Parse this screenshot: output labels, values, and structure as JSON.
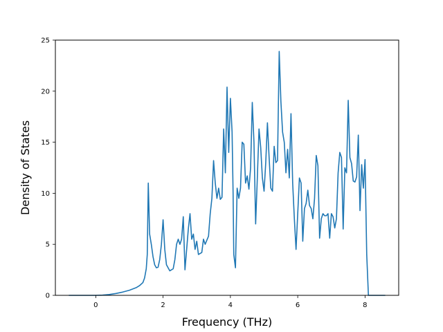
{
  "chart_data": {
    "type": "line",
    "title": "",
    "xlabel": "Frequency (THz)",
    "ylabel": "Density of States",
    "xlim": [
      -1.2,
      9.0
    ],
    "ylim": [
      0,
      25
    ],
    "x_ticks": [
      0,
      2,
      4,
      6,
      8
    ],
    "y_ticks": [
      0,
      5,
      10,
      15,
      20,
      25
    ],
    "grid": false,
    "legend": "none",
    "series": [
      {
        "color": "#1f77b4",
        "points": [
          [
            -0.8,
            0
          ],
          [
            -0.4,
            0
          ],
          [
            0.0,
            0
          ],
          [
            0.2,
            0.02
          ],
          [
            0.4,
            0.08
          ],
          [
            0.6,
            0.18
          ],
          [
            0.8,
            0.32
          ],
          [
            1.0,
            0.5
          ],
          [
            1.2,
            0.75
          ],
          [
            1.3,
            0.95
          ],
          [
            1.4,
            1.25
          ],
          [
            1.45,
            1.7
          ],
          [
            1.5,
            2.6
          ],
          [
            1.53,
            4.0
          ],
          [
            1.56,
            11.0
          ],
          [
            1.6,
            6.0
          ],
          [
            1.65,
            5.0
          ],
          [
            1.7,
            3.8
          ],
          [
            1.75,
            3.0
          ],
          [
            1.8,
            2.7
          ],
          [
            1.85,
            2.75
          ],
          [
            1.9,
            3.5
          ],
          [
            1.95,
            5.0
          ],
          [
            2.0,
            7.4
          ],
          [
            2.05,
            4.5
          ],
          [
            2.1,
            3.0
          ],
          [
            2.2,
            2.4
          ],
          [
            2.3,
            2.6
          ],
          [
            2.35,
            3.5
          ],
          [
            2.4,
            5.0
          ],
          [
            2.45,
            5.5
          ],
          [
            2.5,
            5.0
          ],
          [
            2.55,
            5.5
          ],
          [
            2.6,
            7.7
          ],
          [
            2.65,
            2.5
          ],
          [
            2.7,
            4.5
          ],
          [
            2.75,
            6.5
          ],
          [
            2.8,
            8.0
          ],
          [
            2.85,
            5.5
          ],
          [
            2.9,
            6.0
          ],
          [
            2.95,
            4.5
          ],
          [
            3.0,
            5.3
          ],
          [
            3.05,
            4.0
          ],
          [
            3.15,
            4.2
          ],
          [
            3.2,
            5.5
          ],
          [
            3.25,
            5.0
          ],
          [
            3.35,
            5.8
          ],
          [
            3.4,
            8.0
          ],
          [
            3.45,
            9.5
          ],
          [
            3.5,
            13.2
          ],
          [
            3.55,
            11.0
          ],
          [
            3.6,
            9.5
          ],
          [
            3.65,
            10.5
          ],
          [
            3.7,
            9.4
          ],
          [
            3.75,
            9.6
          ],
          [
            3.8,
            16.3
          ],
          [
            3.85,
            12.0
          ],
          [
            3.9,
            20.4
          ],
          [
            3.95,
            14.0
          ],
          [
            4.0,
            19.3
          ],
          [
            4.05,
            16.0
          ],
          [
            4.08,
            10.0
          ],
          [
            4.1,
            4.0
          ],
          [
            4.15,
            2.7
          ],
          [
            4.2,
            10.5
          ],
          [
            4.25,
            9.5
          ],
          [
            4.3,
            10.5
          ],
          [
            4.35,
            15.0
          ],
          [
            4.4,
            14.8
          ],
          [
            4.45,
            11.0
          ],
          [
            4.5,
            11.7
          ],
          [
            4.55,
            10.4
          ],
          [
            4.6,
            12.5
          ],
          [
            4.65,
            18.9
          ],
          [
            4.7,
            15.0
          ],
          [
            4.75,
            7.0
          ],
          [
            4.8,
            11.5
          ],
          [
            4.85,
            16.3
          ],
          [
            4.9,
            14.5
          ],
          [
            4.95,
            11.5
          ],
          [
            5.0,
            10.2
          ],
          [
            5.05,
            13.0
          ],
          [
            5.1,
            16.9
          ],
          [
            5.15,
            13.5
          ],
          [
            5.2,
            10.5
          ],
          [
            5.25,
            10.2
          ],
          [
            5.3,
            14.6
          ],
          [
            5.35,
            13.0
          ],
          [
            5.4,
            13.2
          ],
          [
            5.45,
            23.9
          ],
          [
            5.5,
            19.0
          ],
          [
            5.55,
            16.0
          ],
          [
            5.6,
            15.0
          ],
          [
            5.65,
            12.0
          ],
          [
            5.7,
            14.3
          ],
          [
            5.75,
            11.5
          ],
          [
            5.8,
            17.8
          ],
          [
            5.85,
            11.0
          ],
          [
            5.9,
            7.5
          ],
          [
            5.95,
            4.5
          ],
          [
            6.0,
            8.0
          ],
          [
            6.05,
            11.5
          ],
          [
            6.1,
            11.0
          ],
          [
            6.15,
            5.3
          ],
          [
            6.2,
            8.5
          ],
          [
            6.25,
            9.0
          ],
          [
            6.3,
            10.3
          ],
          [
            6.35,
            8.8
          ],
          [
            6.4,
            8.5
          ],
          [
            6.45,
            7.5
          ],
          [
            6.5,
            9.5
          ],
          [
            6.55,
            13.7
          ],
          [
            6.6,
            12.7
          ],
          [
            6.65,
            5.6
          ],
          [
            6.7,
            7.5
          ],
          [
            6.75,
            8.0
          ],
          [
            6.8,
            7.8
          ],
          [
            6.85,
            7.8
          ],
          [
            6.9,
            8.0
          ],
          [
            6.95,
            5.6
          ],
          [
            7.0,
            8.0
          ],
          [
            7.05,
            7.7
          ],
          [
            7.1,
            6.6
          ],
          [
            7.15,
            7.5
          ],
          [
            7.2,
            12.0
          ],
          [
            7.25,
            14.0
          ],
          [
            7.3,
            13.5
          ],
          [
            7.35,
            6.5
          ],
          [
            7.4,
            12.5
          ],
          [
            7.45,
            12.0
          ],
          [
            7.5,
            19.1
          ],
          [
            7.55,
            13.5
          ],
          [
            7.6,
            12.9
          ],
          [
            7.65,
            11.2
          ],
          [
            7.7,
            11.1
          ],
          [
            7.75,
            11.6
          ],
          [
            7.8,
            15.7
          ],
          [
            7.85,
            8.3
          ],
          [
            7.9,
            12.8
          ],
          [
            7.95,
            10.5
          ],
          [
            8.0,
            13.3
          ],
          [
            8.05,
            4.0
          ],
          [
            8.1,
            0
          ],
          [
            8.3,
            0
          ],
          [
            8.6,
            0
          ]
        ]
      }
    ]
  }
}
